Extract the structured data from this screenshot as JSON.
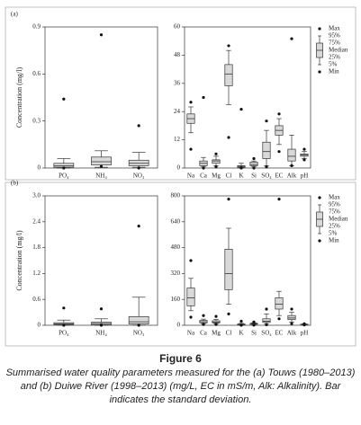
{
  "chart_data": [
    {
      "type": "box",
      "panel": "(a)",
      "ylabel": "Concentration (mg/l)",
      "categories": [
        "PO₄",
        "NH₄",
        "NO₃"
      ],
      "boxes": [
        {
          "min": 0,
          "low": 0,
          "q1": 0.005,
          "median": 0.015,
          "q3": 0.03,
          "high": 0.06,
          "max": 0.44
        },
        {
          "min": 0.01,
          "low": 0.005,
          "q1": 0.02,
          "median": 0.04,
          "q3": 0.07,
          "high": 0.11,
          "max": 0.85
        },
        {
          "min": 0,
          "low": 0.005,
          "q1": 0.015,
          "median": 0.03,
          "q3": 0.05,
          "high": 0.1,
          "max": 0.27
        }
      ],
      "ylim": [
        0,
        0.9
      ],
      "yticks": [
        0,
        0.3,
        0.6,
        0.9
      ]
    },
    {
      "type": "box",
      "categories": [
        "Na",
        "Ca",
        "Mg",
        "Cl",
        "K",
        "Si",
        "SO₄",
        "EC",
        "Alk",
        "pH"
      ],
      "boxes": [
        {
          "min": 8,
          "low": 15,
          "q1": 19,
          "median": 21,
          "q3": 23,
          "high": 26,
          "max": 28
        },
        {
          "min": 0,
          "low": 0.5,
          "q1": 1,
          "median": 2,
          "q3": 3,
          "high": 4.5,
          "max": 30
        },
        {
          "min": 0.5,
          "low": 1,
          "q1": 2,
          "median": 3,
          "q3": 3.5,
          "high": 5,
          "max": 6
        },
        {
          "min": 13,
          "low": 27,
          "q1": 35,
          "median": 40,
          "q3": 44,
          "high": 50,
          "max": 52
        },
        {
          "min": 0,
          "low": 0,
          "q1": 0.3,
          "median": 0.7,
          "q3": 1,
          "high": 2,
          "max": 25
        },
        {
          "min": 0,
          "low": 0.5,
          "q1": 1,
          "median": 1.5,
          "q3": 2.5,
          "high": 3,
          "max": 4
        },
        {
          "min": 0.5,
          "low": 1,
          "q1": 4,
          "median": 7,
          "q3": 11,
          "high": 16,
          "max": 20
        },
        {
          "min": 7,
          "low": 10,
          "q1": 14,
          "median": 16,
          "q3": 18,
          "high": 21,
          "max": 23
        },
        {
          "min": 1,
          "low": 1,
          "q1": 3,
          "median": 5,
          "q3": 8,
          "high": 14,
          "max": 55
        },
        {
          "min": 3.5,
          "low": 4,
          "q1": 5,
          "median": 5.5,
          "q3": 6,
          "high": 7,
          "max": 8
        }
      ],
      "ylim": [
        0,
        60
      ],
      "yticks": [
        0,
        12,
        24,
        36,
        48,
        60
      ],
      "legend": [
        "Max",
        "95%",
        "75%",
        "Median",
        "25%",
        "5%",
        "Min"
      ]
    },
    {
      "type": "box",
      "panel": "(b)",
      "ylabel": "Concentration (mg/l)",
      "categories": [
        "PO₄",
        "NH₄",
        "NO₃"
      ],
      "boxes": [
        {
          "min": 0,
          "low": 0,
          "q1": 0.01,
          "median": 0.03,
          "q3": 0.06,
          "high": 0.12,
          "max": 0.4
        },
        {
          "min": 0,
          "low": 0,
          "q1": 0.01,
          "median": 0.04,
          "q3": 0.07,
          "high": 0.15,
          "max": 0.38
        },
        {
          "min": 0,
          "low": 0,
          "q1": 0.03,
          "median": 0.08,
          "q3": 0.2,
          "high": 0.65,
          "max": 2.3
        }
      ],
      "ylim": [
        0,
        3
      ],
      "yticks": [
        0,
        0.6,
        1.2,
        1.8,
        2.4,
        {
          "value": 3,
          "label": "3.0"
        }
      ]
    },
    {
      "type": "box",
      "categories": [
        "Na",
        "Ca",
        "Mg",
        "Cl",
        "K",
        "Si",
        "SO₄",
        "EC",
        "Alk",
        "pH"
      ],
      "boxes": [
        {
          "min": 50,
          "low": 90,
          "q1": 120,
          "median": 170,
          "q3": 230,
          "high": 290,
          "max": 400
        },
        {
          "min": 5,
          "low": 10,
          "q1": 15,
          "median": 22,
          "q3": 30,
          "high": 38,
          "max": 60
        },
        {
          "min": 5,
          "low": 10,
          "q1": 15,
          "median": 20,
          "q3": 28,
          "high": 36,
          "max": 55
        },
        {
          "min": 70,
          "low": 130,
          "q1": 220,
          "median": 320,
          "q3": 470,
          "high": 600,
          "max": 780
        },
        {
          "min": 0,
          "low": 0,
          "q1": 2,
          "median": 4,
          "q3": 8,
          "high": 12,
          "max": 25
        },
        {
          "min": 1,
          "low": 3,
          "q1": 6,
          "median": 8,
          "q3": 12,
          "high": 15,
          "max": 20
        },
        {
          "min": 3,
          "low": 10,
          "q1": 18,
          "median": 25,
          "q3": 40,
          "high": 70,
          "max": 100
        },
        {
          "min": 40,
          "low": 60,
          "q1": 100,
          "median": 130,
          "q3": 170,
          "high": 210,
          "max": 780
        },
        {
          "min": 10,
          "low": 20,
          "q1": 35,
          "median": 45,
          "q3": 60,
          "high": 80,
          "max": 100
        },
        {
          "min": 2,
          "low": 3,
          "q1": 5,
          "median": 6,
          "q3": 7,
          "high": 8,
          "max": 9
        }
      ],
      "ylim": [
        0,
        800
      ],
      "yticks": [
        0,
        160,
        320,
        480,
        640,
        800
      ],
      "legend": [
        "Max",
        "95%",
        "75%",
        "Median",
        "25%",
        "5%",
        "Min"
      ]
    }
  ],
  "caption": {
    "title": "Figure 6",
    "text": "Summarised water quality parameters measured for the (a) Touws (1980–2013) and (b) Duiwe River (1998–2013) (mg/L, EC in mS/m, Alk: Alkalinity). Bar indicates the standard deviation."
  }
}
